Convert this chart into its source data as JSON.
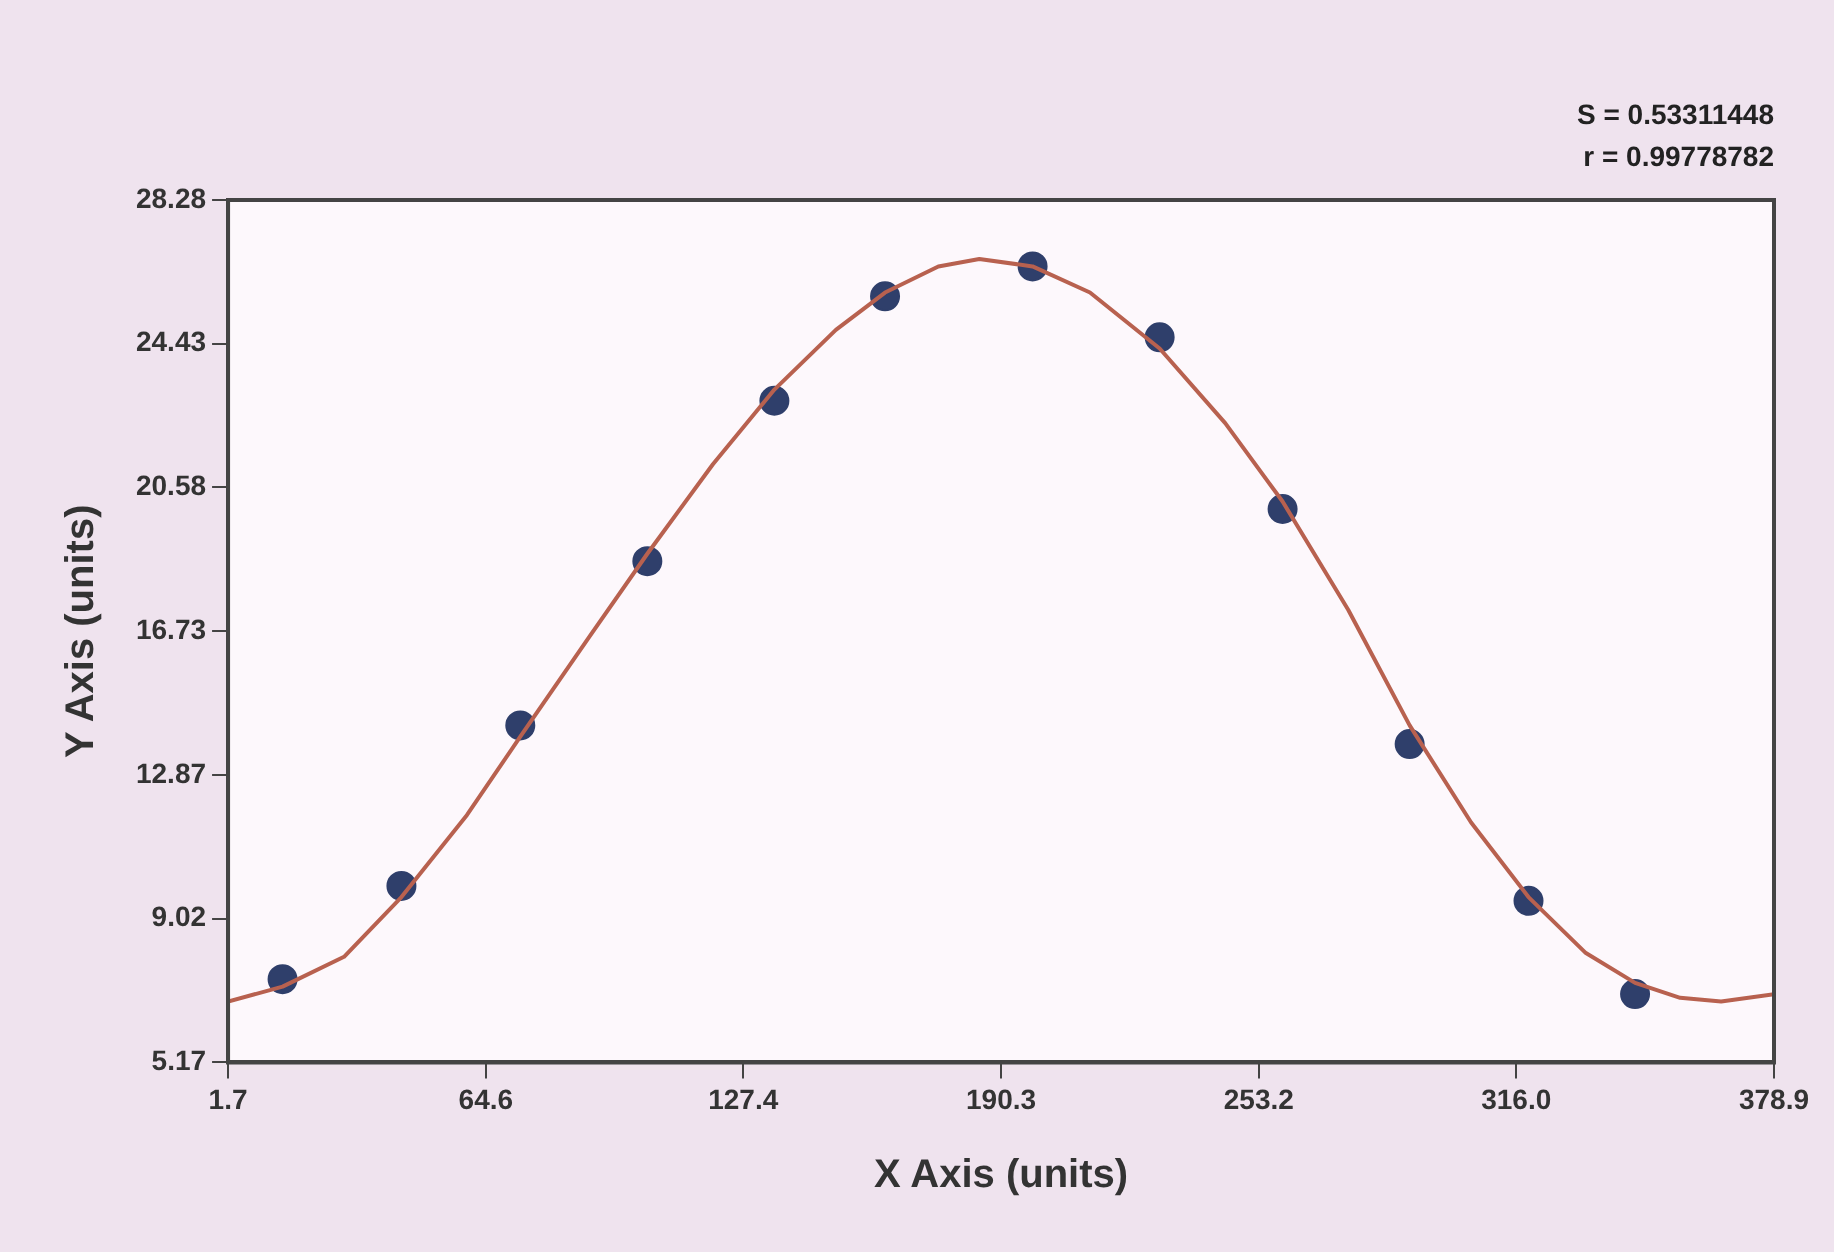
{
  "chart_data": {
    "type": "scatter",
    "xlabel": "X Axis (units)",
    "ylabel": "Y Axis (units)",
    "annotations": [
      "S = 0.53311448",
      "r = 0.99778782"
    ],
    "xlim": [
      1.7,
      378.9
    ],
    "xticks": [
      1.7,
      64.6,
      127.4,
      190.3,
      253.2,
      {
        "value": 316,
        "label": "316.0"
      },
      378.9
    ],
    "ylim": [
      5.17,
      28.28
    ],
    "yticks": [
      5.17,
      9.02,
      12.87,
      16.73,
      20.58,
      24.43,
      28.28
    ],
    "grid": false,
    "legend": false,
    "series": [
      {
        "type": "line",
        "color": "#b8614f",
        "marker": "none",
        "line_style": "solid",
        "x": [
          1.7,
          15,
          30,
          44,
          60,
          73,
          90,
          104,
          120,
          135,
          150,
          162,
          175,
          185,
          198,
          212,
          229,
          245,
          259,
          275,
          290,
          305,
          319,
          333,
          345,
          356,
          366,
          378.9
        ],
        "values": [
          6.8,
          7.2,
          8.0,
          9.6,
          11.8,
          13.9,
          16.6,
          18.8,
          21.2,
          23.2,
          24.8,
          25.8,
          26.5,
          26.7,
          26.5,
          25.8,
          24.3,
          22.3,
          20.2,
          17.3,
          14.2,
          11.6,
          9.6,
          8.1,
          7.3,
          6.9,
          6.8,
          7.0
        ]
      },
      {
        "color": "#2f3f6b",
        "marker": "circle",
        "x": [
          15,
          44,
          73,
          104,
          135,
          162,
          198,
          229,
          259,
          290,
          319,
          345
        ],
        "values": [
          7.4,
          9.9,
          14.2,
          18.6,
          22.9,
          25.7,
          26.5,
          24.6,
          20.0,
          13.7,
          9.5,
          7.0
        ]
      }
    ]
  }
}
